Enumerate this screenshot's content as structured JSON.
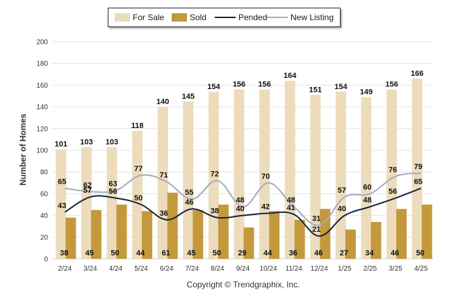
{
  "chart_data": {
    "type": "bar",
    "categories": [
      "2/24",
      "3/24",
      "4/24",
      "5/24",
      "6/24",
      "7/24",
      "8/24",
      "9/24",
      "10/24",
      "11/24",
      "12/24",
      "1/25",
      "2/25",
      "3/25",
      "4/25"
    ],
    "series": [
      {
        "name": "For Sale",
        "type": "bar",
        "color": "#eddcbc",
        "values": [
          101,
          103,
          103,
          118,
          140,
          145,
          154,
          156,
          156,
          164,
          151,
          154,
          149,
          156,
          166
        ]
      },
      {
        "name": "Sold",
        "type": "bar",
        "color": "#c4993c",
        "values": [
          38,
          45,
          50,
          44,
          61,
          45,
          50,
          29,
          44,
          36,
          46,
          27,
          34,
          46,
          50
        ]
      },
      {
        "name": "Pended",
        "type": "line",
        "color": "#14253d",
        "values": [
          43,
          57,
          56,
          50,
          36,
          46,
          38,
          40,
          42,
          41,
          21,
          40,
          48,
          56,
          65
        ]
      },
      {
        "name": "New Listing",
        "type": "line",
        "color": "#a4abbf",
        "values": [
          65,
          62,
          63,
          77,
          71,
          55,
          72,
          48,
          70,
          48,
          31,
          57,
          60,
          76,
          79
        ]
      }
    ],
    "ylabel": "Number of Homes",
    "xlabel": "",
    "ylim": [
      0,
      200
    ],
    "yticks": [
      0,
      20,
      40,
      60,
      80,
      100,
      120,
      140,
      160,
      180,
      200
    ],
    "grid": true,
    "legend": "top"
  },
  "legend": [
    {
      "label": "For Sale",
      "kind": "swatch",
      "color": "#eddcbc"
    },
    {
      "label": "Sold",
      "kind": "swatch",
      "color": "#c4993c"
    },
    {
      "label": "Pended",
      "kind": "line",
      "color": "#14253d"
    },
    {
      "label": "New Listing",
      "kind": "line",
      "color": "#a4abbf"
    }
  ],
  "copyright": "Copyright © Trendgraphix, Inc."
}
